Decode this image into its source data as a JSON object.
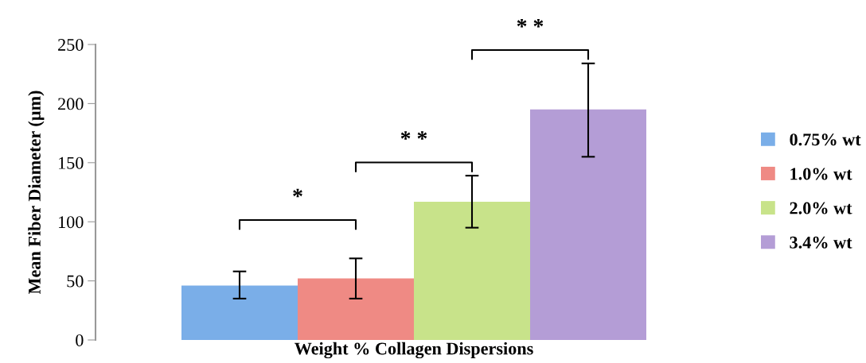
{
  "chart_data": {
    "type": "bar",
    "xlabel": "Weight % Collagen Dispersions",
    "ylabel": "Mean Fiber Diameter (µm)",
    "categories": [
      null
    ],
    "series": [
      {
        "name": "0.75% wt",
        "color": "#7aaee8",
        "values": [
          46
        ],
        "errors": [
          [
            35,
            58
          ]
        ]
      },
      {
        "name": "1.0% wt",
        "color": "#ef8a84",
        "values": [
          52
        ],
        "errors": [
          [
            35,
            69
          ]
        ]
      },
      {
        "name": "2.0% wt",
        "color": "#c8e38a",
        "values": [
          117
        ],
        "errors": [
          [
            95,
            139
          ]
        ]
      },
      {
        "name": "3.4% wt",
        "color": "#b49dd6",
        "values": [
          195
        ],
        "errors": [
          [
            155,
            234
          ]
        ]
      }
    ],
    "ylim": [
      0,
      250
    ],
    "yticks": [
      0,
      50,
      100,
      150,
      200,
      250
    ],
    "annotations": [
      "*",
      "* *",
      "* *"
    ],
    "legend": "right",
    "grid": false,
    "tick_labels": "y"
  }
}
